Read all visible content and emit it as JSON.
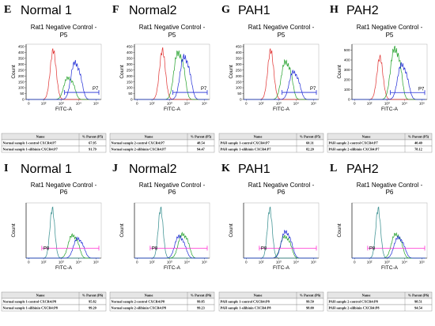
{
  "chart_data": [
    {
      "type": "area",
      "letter": "E",
      "sample": "Normal 1",
      "title_line1": "Rat1 Negative Control -",
      "title_line2": "P5",
      "ylabel": "Count",
      "xlabel": "FITC-A",
      "yticks": [
        0,
        50,
        100,
        150,
        200,
        250,
        300,
        350,
        400,
        450
      ],
      "ylim": [
        0,
        470
      ],
      "xticks": [
        "0",
        "10²",
        "10³",
        "10⁴",
        "10⁵"
      ],
      "gate": "P7",
      "gate_color": "blue",
      "gate_y": 60,
      "peaks": {
        "red": {
          "x": 2.55,
          "h": 450
        },
        "green": {
          "x": 3.35,
          "h": 190
        },
        "blue": {
          "x": 3.75,
          "h": 320
        }
      },
      "table": {
        "headers": [
          "Name",
          "% Parent (P5)"
        ],
        "rows": [
          [
            "Normal sample 1-control CXCR4:P7",
            "67.95"
          ],
          [
            "Normal sample 1-silibinin CXCR4:P7",
            "91.79"
          ]
        ]
      }
    },
    {
      "type": "area",
      "letter": "F",
      "sample": "Normal2",
      "title_line1": "Rat1 Negative Control -",
      "title_line2": "P5",
      "ylabel": "Count",
      "xlabel": "FITC-A",
      "yticks": [
        0,
        50,
        100,
        150,
        200,
        250,
        300,
        350,
        400,
        450
      ],
      "ylim": [
        0,
        470
      ],
      "xticks": [
        "0",
        "10²",
        "10³",
        "10⁴",
        "10⁵"
      ],
      "gate": "P7",
      "gate_color": "blue",
      "gate_y": 60,
      "peaks": {
        "red": {
          "x": 2.6,
          "h": 450
        },
        "green": {
          "x": 3.45,
          "h": 410
        },
        "blue": {
          "x": 3.8,
          "h": 370
        }
      },
      "table": {
        "headers": [
          "Name",
          "% Parent (P5)"
        ],
        "rows": [
          [
            "Normal sample 2-control CXCR4:P7",
            "48.54"
          ],
          [
            "Normal sample 2-silibinin CXCR4:P7",
            "94.47"
          ]
        ]
      }
    },
    {
      "type": "area",
      "letter": "G",
      "sample": "PAH1",
      "title_line1": "Rat1 Negative Control -",
      "title_line2": "P5",
      "ylabel": "Count",
      "xlabel": "FITC-A",
      "yticks": [
        0,
        50,
        100,
        150,
        200,
        250,
        300,
        350,
        400,
        450
      ],
      "ylim": [
        0,
        470
      ],
      "xticks": [
        "0",
        "10²",
        "10³",
        "10⁴",
        "10⁵"
      ],
      "gate": "P7",
      "gate_color": "blue",
      "gate_y": 60,
      "peaks": {
        "red": {
          "x": 2.55,
          "h": 450
        },
        "green": {
          "x": 3.35,
          "h": 330
        },
        "blue": {
          "x": 3.8,
          "h": 240
        }
      },
      "table": {
        "headers": [
          "Name",
          "% Parent (P5)"
        ],
        "rows": [
          [
            "PAH sample 1-control CXCR4:P7",
            "60.31"
          ],
          [
            "PAH sample 1-silibinin CXCR4:P7",
            "82.20"
          ]
        ]
      }
    },
    {
      "type": "area",
      "letter": "H",
      "sample": "PAH2",
      "title_line1": "Rat1 Negative Control -",
      "title_line2": "P5",
      "ylabel": "Count",
      "xlabel": "FITC-A",
      "yticks": [
        0,
        100,
        200,
        300,
        400,
        500
      ],
      "ylim": [
        0,
        560
      ],
      "xticks": [
        "0",
        "10²",
        "10³",
        "10⁴",
        "10⁵"
      ],
      "gate": "P7",
      "gate_color": "blue",
      "gate_y": 70,
      "peaks": {
        "red": {
          "x": 2.6,
          "h": 460
        },
        "green": {
          "x": 3.4,
          "h": 530
        },
        "blue": {
          "x": 3.8,
          "h": 360
        }
      },
      "table": {
        "headers": [
          "Name",
          "% Parent (P5)"
        ],
        "rows": [
          [
            "PAH sample 2-control CXCR4:P7",
            "40.40"
          ],
          [
            "PAH sample 2-silibinin CXCR4:P7",
            "78.12"
          ]
        ]
      }
    },
    {
      "type": "area",
      "letter": "I",
      "sample": "Normal 1",
      "title_line1": "Rat1 Negative Control -",
      "title_line2": "P6",
      "ylabel": "Count",
      "xlabel": "FITC-A",
      "ylim": [
        0,
        470
      ],
      "xticks": [
        "0",
        "10²",
        "10³",
        "10⁴",
        "10⁵"
      ],
      "gate": "P8",
      "gate_color": "magenta",
      "gate_y": 85,
      "peaks": {
        "teal": {
          "x": 2.5,
          "h": 450
        },
        "green": {
          "x": 3.6,
          "h": 200
        },
        "blue": {
          "x": 3.9,
          "h": 170
        }
      },
      "table": {
        "headers": [
          "Name",
          "% Parent (P6)"
        ],
        "rows": [
          [
            "Normal sample 1-control CXCR4:P8",
            "95.82"
          ],
          [
            "Normal sample 1-silibinin CXCR4:P8",
            "99.20"
          ]
        ]
      }
    },
    {
      "type": "area",
      "letter": "J",
      "sample": "Normal2",
      "title_line1": "Rat1 Negative Control -",
      "title_line2": "P6",
      "ylabel": "Count",
      "xlabel": "FITC-A",
      "ylim": [
        0,
        470
      ],
      "xticks": [
        "0",
        "10²",
        "10³",
        "10⁴",
        "10⁵"
      ],
      "gate": "P8",
      "gate_color": "magenta",
      "gate_y": 85,
      "peaks": {
        "teal": {
          "x": 2.5,
          "h": 450
        },
        "green": {
          "x": 3.7,
          "h": 210
        },
        "blue": {
          "x": 3.5,
          "h": 190
        }
      },
      "table": {
        "headers": [
          "Name",
          "% Parent (P6)"
        ],
        "rows": [
          [
            "Normal sample 2-control CXCR4:P8",
            "99.85"
          ],
          [
            "Normal sample 2-silibinin CXCR4:P8",
            "99.23"
          ]
        ]
      }
    },
    {
      "type": "area",
      "letter": "K",
      "sample": "PAH1",
      "title_line1": "Rat1 Negative Control -",
      "title_line2": "P6",
      "ylabel": "Count",
      "xlabel": "FITC-A",
      "ylim": [
        0,
        470
      ],
      "xticks": [
        "0",
        "10²",
        "10³",
        "10⁴",
        "10⁵"
      ],
      "gate": "P8",
      "gate_color": "magenta",
      "gate_y": 85,
      "peaks": {
        "teal": {
          "x": 2.5,
          "h": 450
        },
        "green": {
          "x": 3.3,
          "h": 190
        },
        "blue": {
          "x": 3.35,
          "h": 230
        }
      },
      "table": {
        "headers": [
          "Name",
          "% Parent (P6)"
        ],
        "rows": [
          [
            "PAH sample 1-control CXCR4:P8",
            "99.50"
          ],
          [
            "PAH sample 1-silibinin CXCR4:P8",
            "98.00"
          ]
        ]
      }
    },
    {
      "type": "area",
      "letter": "L",
      "sample": "PAH2",
      "title_line1": "Rat1 Negative Control -",
      "title_line2": "P6",
      "ylabel": "Count",
      "xlabel": "FITC-A",
      "ylim": [
        0,
        470
      ],
      "xticks": [
        "0",
        "10²",
        "10³",
        "10⁴",
        "10⁵"
      ],
      "gate": "P8",
      "gate_color": "magenta",
      "gate_y": 85,
      "peaks": {
        "teal": {
          "x": 2.5,
          "h": 450
        },
        "green": {
          "x": 3.45,
          "h": 210
        },
        "blue": {
          "x": 3.6,
          "h": 180
        }
      },
      "table": {
        "headers": [
          "Name",
          "% Parent (P6)"
        ],
        "rows": [
          [
            "PAH sample 2-control CXCR4:P8",
            "98.51"
          ],
          [
            "PAH sample 2-silibinin CXCR4:P8",
            "94.54"
          ]
        ]
      }
    }
  ],
  "colors": {
    "red": "#e0302f",
    "green": "#22a02a",
    "blue": "#1f2bd6",
    "teal": "#2f8a8a",
    "gate_blue": "#1f2bd6",
    "gate_magenta": "#ff2fd0",
    "axis": "#000000",
    "grid_border": "#808080"
  }
}
